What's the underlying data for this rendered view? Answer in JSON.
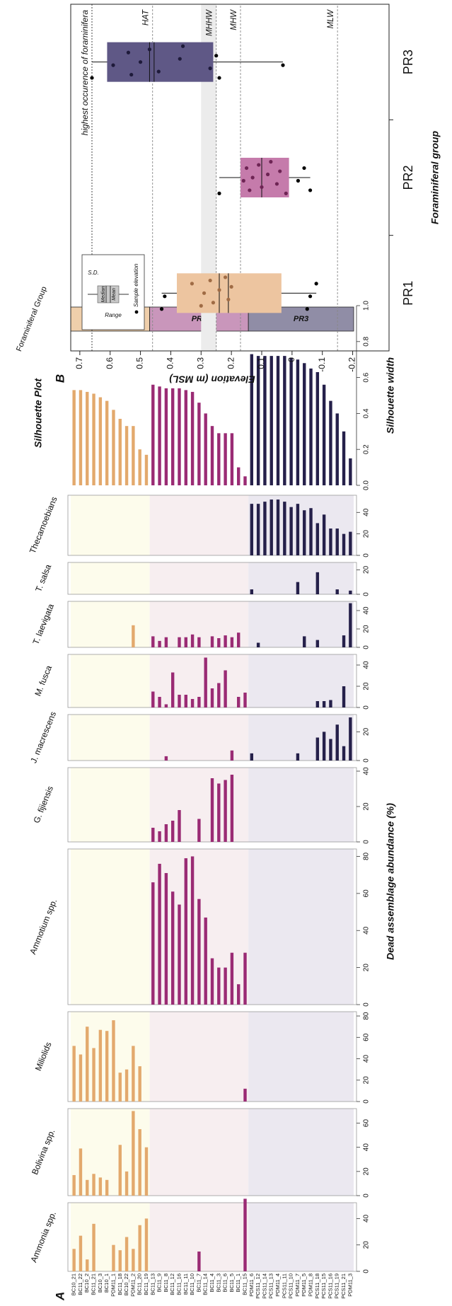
{
  "chart_data": [
    {
      "type": "bar",
      "label": "A",
      "xlabel": "Dead assemblage abundance (%)",
      "categories": [
        "BC10_21",
        "BC11_22",
        "BC10_2",
        "BC11_21",
        "BC10_3",
        "BC10_1",
        "PDM11_1",
        "BC11_18",
        "BC10_22",
        "PDM11_2",
        "BC11_20",
        "BC11_19",
        "BC11_13",
        "BC11_9",
        "BC11_8",
        "BC11_12",
        "BC11_16",
        "BC11_11",
        "BC11_10",
        "BC11_7",
        "BC11_14",
        "BC11_4",
        "BC11_3",
        "BC11_6",
        "BC11_5",
        "BC11_1",
        "BC11_15",
        "PDM11_6",
        "PCS11_12",
        "PCS11_14",
        "PCS11_13",
        "PDM11_4",
        "PCS11_11",
        "PCS11_10",
        "PDM11_7",
        "PDM11_5",
        "PDM11_8",
        "PCS11_18",
        "PCS11_15",
        "PCS11_16",
        "PCS11_19",
        "PCS11_21",
        "PDM11_3"
      ],
      "series": [
        {
          "name": "Ammonia spp.",
          "xlim": [
            0,
            52
          ],
          "xticks": [
            0,
            20,
            40
          ],
          "values": [
            17,
            27,
            9,
            36,
            0,
            0,
            20,
            16,
            26,
            17,
            35,
            40,
            0,
            0,
            0,
            0,
            0,
            0,
            0,
            15,
            0,
            0,
            0,
            0,
            0,
            0,
            55,
            0,
            0,
            0,
            0,
            0,
            0,
            0,
            0,
            0,
            0,
            0,
            0,
            0,
            0,
            0,
            0
          ]
        },
        {
          "name": "Bolivina spp.",
          "xlim": [
            0,
            72
          ],
          "xticks": [
            0,
            20,
            40,
            60
          ],
          "values": [
            17,
            39,
            13,
            18,
            15,
            13,
            0,
            42,
            20,
            70,
            55,
            40,
            0,
            0,
            0,
            0,
            0,
            0,
            0,
            0,
            0,
            0,
            0,
            0,
            0,
            0,
            0,
            0,
            0,
            0,
            0,
            0,
            0,
            0,
            0,
            0,
            0,
            0,
            0,
            0,
            0,
            0,
            0
          ]
        },
        {
          "name": "Miliolids",
          "xlim": [
            0,
            84
          ],
          "xticks": [
            0,
            20,
            40,
            60,
            80
          ],
          "values": [
            52,
            44,
            70,
            50,
            67,
            66,
            76,
            27,
            30,
            52,
            33,
            0,
            0,
            0,
            0,
            0,
            0,
            0,
            0,
            0,
            0,
            0,
            0,
            0,
            0,
            0,
            12,
            0,
            0,
            0,
            0,
            0,
            0,
            0,
            0,
            0,
            0,
            0,
            0,
            0,
            0,
            0,
            0
          ]
        },
        {
          "name": "Ammotium spp.",
          "xlim": [
            0,
            84
          ],
          "xticks": [
            0,
            20,
            40,
            60,
            80
          ],
          "values": [
            0,
            0,
            0,
            0,
            0,
            0,
            0,
            0,
            0,
            0,
            0,
            0,
            66,
            76,
            71,
            61,
            54,
            79,
            80,
            57,
            47,
            25,
            20,
            20,
            28,
            11,
            28,
            0,
            0,
            0,
            0,
            0,
            0,
            0,
            0,
            0,
            0,
            0,
            0,
            0,
            0,
            0,
            0
          ]
        },
        {
          "name": "G. fijiensis",
          "xlim": [
            0,
            42
          ],
          "xticks": [
            0,
            20,
            40
          ],
          "values": [
            0,
            0,
            0,
            0,
            0,
            0,
            0,
            0,
            0,
            0,
            0,
            0,
            8,
            6,
            10,
            12,
            18,
            0,
            0,
            13,
            0,
            36,
            33,
            35,
            38,
            0,
            0,
            0,
            0,
            0,
            0,
            0,
            0,
            0,
            0,
            0,
            0,
            0,
            0,
            0,
            0,
            0,
            0
          ]
        },
        {
          "name": "J. macrescens",
          "xlim": [
            0,
            32
          ],
          "xticks": [
            0,
            20
          ],
          "values": [
            0,
            0,
            0,
            0,
            0,
            0,
            0,
            0,
            0,
            0,
            0,
            0,
            0,
            0,
            3,
            0,
            0,
            0,
            0,
            0,
            0,
            0,
            0,
            0,
            7,
            0,
            0,
            5,
            0,
            0,
            0,
            0,
            0,
            0,
            5,
            0,
            0,
            16,
            20,
            15,
            25,
            10,
            30
          ]
        },
        {
          "name": "M. fusca",
          "xlim": [
            0,
            50
          ],
          "xticks": [
            0,
            20,
            40
          ],
          "values": [
            0,
            0,
            0,
            0,
            0,
            0,
            0,
            0,
            0,
            0,
            0,
            0,
            15,
            10,
            3,
            33,
            12,
            12,
            8,
            10,
            47,
            18,
            23,
            35,
            0,
            10,
            14,
            0,
            0,
            0,
            0,
            0,
            0,
            0,
            0,
            0,
            0,
            6,
            6,
            7,
            0,
            20,
            0
          ]
        },
        {
          "name": "T. laevigata",
          "xlim": [
            0,
            50
          ],
          "xticks": [
            0,
            20,
            40
          ],
          "values": [
            0,
            0,
            0,
            0,
            0,
            0,
            0,
            0,
            0,
            24,
            0,
            0,
            12,
            7,
            11,
            0,
            11,
            11,
            14,
            11,
            0,
            12,
            10,
            13,
            11,
            16,
            0,
            0,
            5,
            0,
            0,
            0,
            0,
            0,
            0,
            12,
            0,
            8,
            0,
            0,
            0,
            13,
            48
          ]
        },
        {
          "name": "T. salsa",
          "xlim": [
            0,
            26
          ],
          "xticks": [
            0,
            20
          ],
          "values": [
            0,
            0,
            0,
            0,
            0,
            0,
            0,
            0,
            0,
            0,
            0,
            0,
            0,
            0,
            0,
            0,
            0,
            0,
            0,
            0,
            0,
            0,
            0,
            0,
            0,
            0,
            0,
            4,
            0,
            0,
            0,
            0,
            0,
            0,
            10,
            0,
            0,
            18,
            0,
            0,
            4,
            0,
            3
          ]
        },
        {
          "name": "Thecamoebians",
          "xlim": [
            0,
            56
          ],
          "xticks": [
            0,
            20,
            40
          ],
          "values": [
            0,
            0,
            0,
            0,
            0,
            0,
            0,
            0,
            0,
            0,
            0,
            0,
            0,
            0,
            0,
            0,
            0,
            0,
            0,
            0,
            0,
            0,
            0,
            0,
            0,
            0,
            0,
            48,
            48,
            50,
            52,
            52,
            50,
            45,
            48,
            42,
            44,
            30,
            38,
            25,
            25,
            20,
            22
          ]
        }
      ],
      "silhouette_title": "Silhouette Plot",
      "silhouette_xlabel": "Silhouette width",
      "silhouette_xlim": [
        0,
        1
      ],
      "silhouette_xticks": [
        {
          "value": 0,
          "label": "0.0"
        },
        0.2,
        0.4,
        0.6,
        0.8,
        {
          "value": 1,
          "label": "1.0"
        }
      ],
      "group_title": "Foraminiferal Group",
      "groups": [
        {
          "name": "PR1",
          "color": "#e3a96d",
          "background": "#fdfcec",
          "block": "#efcfab",
          "silhouette": [
            0.53,
            0.53,
            0.52,
            0.51,
            0.49,
            0.47,
            0.42,
            0.37,
            0.33,
            0.33,
            0.2,
            0.17
          ]
        },
        {
          "name": "PR2",
          "color": "#9a2b74",
          "background": "#f7eef0",
          "block": "#c996bb",
          "silhouette": [
            0.56,
            0.55,
            0.54,
            0.54,
            0.54,
            0.53,
            0.52,
            0.46,
            0.4,
            0.33,
            0.29,
            0.29,
            0.29,
            0.1,
            0.05
          ]
        },
        {
          "name": "PR3",
          "color": "#25204a",
          "background": "#ebe8f0",
          "block": "#908da6",
          "silhouette": [
            0.73,
            0.72,
            0.72,
            0.72,
            0.72,
            0.72,
            0.71,
            0.7,
            0.68,
            0.65,
            0.63,
            0.56,
            0.47,
            0.4,
            0.3,
            0.15
          ]
        }
      ]
    },
    {
      "type": "box",
      "label": "B",
      "ylabel": "Elevation (m MSL)",
      "xlabel": "Foraminiferal group",
      "ylim": [
        -0.32,
        0.73
      ],
      "yticks": [
        0.7,
        0.6,
        0.5,
        0.4,
        0.3,
        0.2,
        0.1,
        0,
        -0.1,
        -0.2
      ],
      "band": [
        0.25,
        0.3
      ],
      "reference_lines": [
        {
          "label": "highest occurence of foraminifera",
          "value": 0.66
        },
        {
          "label": "HAT",
          "value": 0.46
        },
        {
          "label": "MHHW",
          "value": 0.25
        },
        {
          "label": "MHW",
          "value": 0.17
        },
        {
          "label": "MLW",
          "value": -0.15
        }
      ],
      "legend": [
        "Range",
        "S.D.",
        "Median",
        "Mean",
        "Sample elevation"
      ],
      "boxes": [
        {
          "name": "PR1",
          "color": "#edc5a0",
          "point_color": "#a06c45",
          "q1": 0.035,
          "q3": 0.38,
          "median": 0.24,
          "mean": 0.21,
          "whiskers": [
            -0.08,
            0.43
          ],
          "points": [
            0.43,
            0.42,
            0.33,
            0.3,
            0.29,
            0.27,
            0.26,
            0.24,
            0.22,
            0.21,
            0.2,
            -0.05,
            -0.06,
            -0.08
          ]
        },
        {
          "name": "PR2",
          "color": "#c57bab",
          "point_color": "#6e2454",
          "q1": 0.01,
          "q3": 0.17,
          "median": 0.1,
          "mean": 0.1,
          "whiskers": [
            -0.06,
            0.24
          ],
          "points": [
            0.24,
            0.16,
            0.15,
            0.14,
            0.13,
            0.11,
            0.1,
            0.08,
            0.07,
            0.05,
            0.04,
            0.02,
            -0.02,
            -0.04,
            -0.06
          ]
        },
        {
          "name": "PR3",
          "color": "#5f5886",
          "point_color": "#1e1a3a",
          "q1": 0.26,
          "q3": 0.61,
          "median": 0.47,
          "mean": 0.455,
          "whiskers": [
            0.03,
            0.66
          ],
          "points": [
            0.66,
            0.59,
            0.54,
            0.53,
            0.5,
            0.47,
            0.44,
            0.37,
            0.36,
            0.27,
            0.25,
            0.24,
            0.03
          ]
        }
      ]
    }
  ]
}
